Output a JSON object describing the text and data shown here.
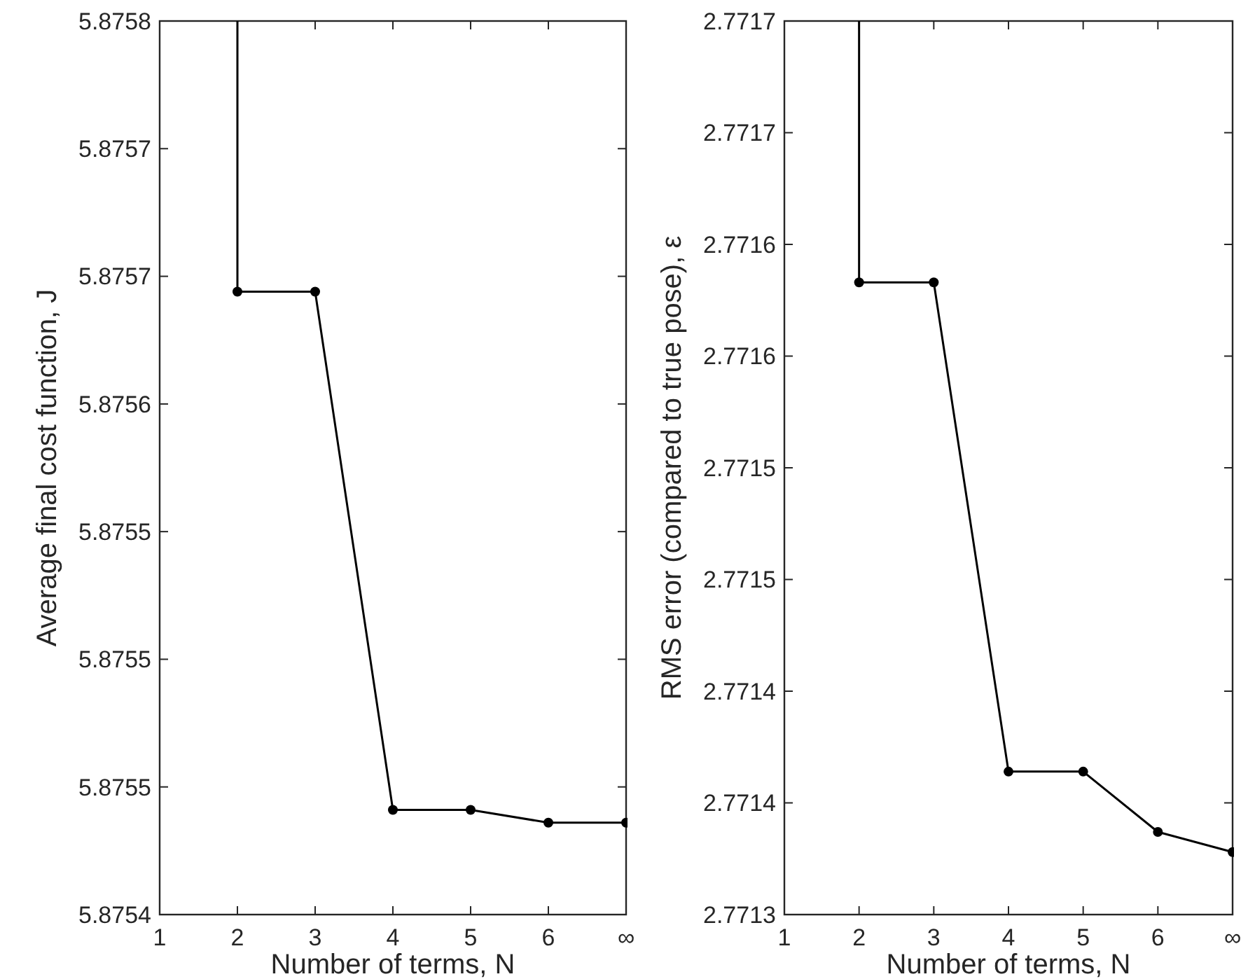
{
  "chart_data": [
    {
      "type": "line",
      "xlabel": "Number of terms, N",
      "ylabel": "Average final cost function, J",
      "xlim": [
        1,
        7
      ],
      "xticks": [
        1,
        2,
        3,
        4,
        5,
        6,
        {
          "value": 7,
          "label": "∞"
        }
      ],
      "ylim": [
        5.8754,
        5.87575
      ],
      "yticks": [
        {
          "value": 5.8754,
          "label": "5.8754"
        },
        {
          "value": 5.87545,
          "label": "5.8755"
        },
        {
          "value": 5.8755,
          "label": "5.8755"
        },
        {
          "value": 5.87555,
          "label": "5.8755"
        },
        {
          "value": 5.8756,
          "label": "5.8756"
        },
        {
          "value": 5.87565,
          "label": "5.8757"
        },
        {
          "value": 5.8757,
          "label": "5.8757"
        },
        {
          "value": 5.87575,
          "label": "5.8758"
        }
      ],
      "series": [
        {
          "color": "#000000",
          "x": [
            2,
            2
          ],
          "values": [
            5.87575,
            5.875644
          ]
        },
        {
          "color": "#000000",
          "marker": "circle",
          "x": [
            2,
            3,
            4,
            5,
            6,
            7
          ],
          "values": [
            5.875644,
            5.875644,
            5.875441,
            5.875441,
            5.875436,
            5.875436
          ]
        }
      ]
    },
    {
      "type": "line",
      "xlabel": "Number of terms, N",
      "ylabel": "RMS error (compared to true pose), ε",
      "xlim": [
        1,
        7
      ],
      "xticks": [
        1,
        2,
        3,
        4,
        5,
        6,
        {
          "value": 7,
          "label": "∞"
        }
      ],
      "ylim": [
        2.7713,
        2.7717
      ],
      "yticks": [
        {
          "value": 2.7713,
          "label": "2.7713"
        },
        {
          "value": 2.77135,
          "label": "2.7714"
        },
        {
          "value": 2.7714,
          "label": "2.7714"
        },
        {
          "value": 2.77145,
          "label": "2.7715"
        },
        {
          "value": 2.7715,
          "label": "2.7715"
        },
        {
          "value": 2.77155,
          "label": "2.7716"
        },
        {
          "value": 2.7716,
          "label": "2.7716"
        },
        {
          "value": 2.77165,
          "label": "2.7717"
        },
        {
          "value": 2.7717,
          "label": "2.7717"
        }
      ],
      "series": [
        {
          "color": "#000000",
          "x": [
            2,
            2
          ],
          "values": [
            2.7717,
            2.771583
          ]
        },
        {
          "color": "#000000",
          "marker": "circle",
          "x": [
            2,
            3,
            4,
            5,
            6,
            7
          ],
          "values": [
            2.771583,
            2.771583,
            2.771364,
            2.771364,
            2.771337,
            2.771328
          ]
        }
      ]
    }
  ]
}
